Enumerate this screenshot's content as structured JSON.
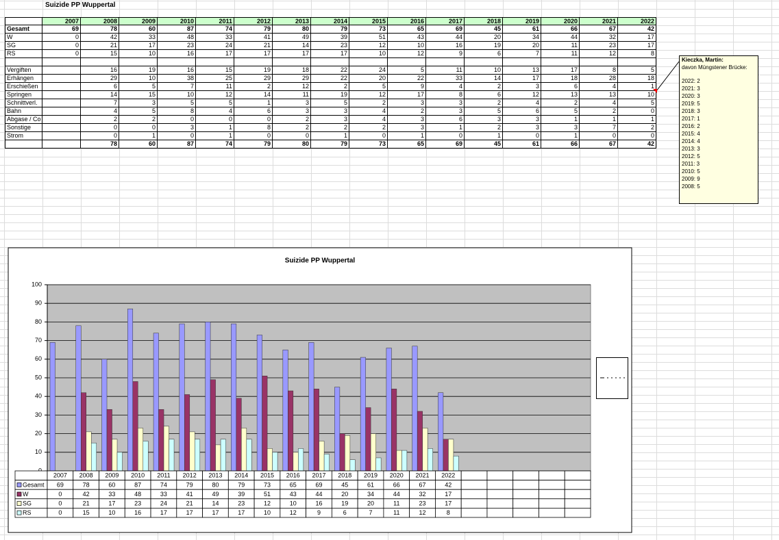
{
  "sheet": {
    "title": "Suizide PP Wuppertal",
    "header": [
      "2007",
      "2008",
      "2009",
      "2010",
      "2011",
      "2012",
      "2013",
      "2014",
      "2015",
      "2016",
      "2017",
      "2018",
      "2019",
      "2020",
      "2021",
      "2022"
    ],
    "rows": [
      {
        "label": "Gesamt",
        "values": [
          69,
          78,
          60,
          87,
          74,
          79,
          80,
          79,
          73,
          65,
          69,
          45,
          61,
          66,
          67,
          42
        ]
      },
      {
        "label": "W",
        "values": [
          0,
          42,
          33,
          48,
          33,
          41,
          49,
          39,
          51,
          43,
          44,
          20,
          34,
          44,
          32,
          17
        ]
      },
      {
        "label": "SG",
        "values": [
          0,
          21,
          17,
          23,
          24,
          21,
          14,
          23,
          12,
          10,
          16,
          19,
          20,
          11,
          23,
          17
        ]
      },
      {
        "label": "RS",
        "values": [
          0,
          15,
          10,
          16,
          17,
          17,
          17,
          17,
          10,
          12,
          9,
          6,
          7,
          11,
          12,
          8
        ]
      }
    ],
    "method_rows": [
      {
        "label": "Vergiften",
        "values": [
          null,
          16,
          19,
          16,
          15,
          19,
          18,
          22,
          24,
          5,
          11,
          10,
          13,
          17,
          8,
          5
        ]
      },
      {
        "label": "Erhängen",
        "values": [
          null,
          29,
          10,
          38,
          25,
          29,
          29,
          22,
          20,
          22,
          33,
          14,
          17,
          18,
          28,
          18
        ]
      },
      {
        "label": "Erschießen",
        "values": [
          null,
          6,
          5,
          7,
          11,
          2,
          12,
          2,
          5,
          9,
          4,
          2,
          3,
          6,
          4,
          1
        ]
      },
      {
        "label": "Springen",
        "values": [
          null,
          14,
          15,
          10,
          12,
          14,
          11,
          19,
          12,
          17,
          8,
          6,
          12,
          13,
          13,
          10
        ]
      },
      {
        "label": "Schnittverl.",
        "values": [
          null,
          7,
          3,
          5,
          5,
          1,
          3,
          5,
          2,
          3,
          3,
          2,
          4,
          2,
          4,
          5
        ]
      },
      {
        "label": "Bahn",
        "values": [
          null,
          4,
          5,
          8,
          4,
          6,
          3,
          3,
          4,
          2,
          3,
          5,
          6,
          5,
          2,
          0
        ]
      },
      {
        "label": "Abgase / Co",
        "values": [
          null,
          2,
          2,
          0,
          0,
          0,
          2,
          3,
          4,
          3,
          6,
          3,
          3,
          1,
          1,
          1
        ]
      },
      {
        "label": "Sonstige",
        "values": [
          null,
          0,
          0,
          3,
          1,
          8,
          2,
          2,
          2,
          3,
          1,
          2,
          3,
          3,
          7,
          2
        ]
      },
      {
        "label": "Strom",
        "values": [
          null,
          0,
          1,
          0,
          1,
          0,
          0,
          1,
          0,
          1,
          0,
          1,
          0,
          1,
          0,
          0
        ]
      }
    ],
    "totals": [
      null,
      78,
      60,
      87,
      74,
      79,
      80,
      79,
      73,
      65,
      69,
      45,
      61,
      66,
      67,
      42
    ]
  },
  "comment": {
    "author": "Kieczka, Martin:",
    "heading": "davon Müngstener Brücke:",
    "lines": [
      "2022: 2",
      "2021: 3",
      "2020: 3",
      "2019: 5",
      "2018: 3",
      "2017: 1",
      "2016: 2",
      "2015: 4",
      "2014: 4",
      "2013: 3",
      "2012: 5",
      "2011: 3",
      "2010: 5",
      "2009: 9",
      "2008: 5"
    ]
  },
  "chart_data": {
    "type": "bar",
    "title": "Suizide PP Wuppertal",
    "categories": [
      "2007",
      "2008",
      "2009",
      "2010",
      "2011",
      "2012",
      "2013",
      "2014",
      "2015",
      "2016",
      "2017",
      "2018",
      "2019",
      "2020",
      "2021",
      "2022",
      null,
      null,
      null,
      null,
      null
    ],
    "series": [
      {
        "name": "Gesamt",
        "color": "#9999ff",
        "values": [
          69,
          78,
          60,
          87,
          74,
          79,
          80,
          79,
          73,
          65,
          69,
          45,
          61,
          66,
          67,
          42,
          null,
          null,
          null,
          null,
          null
        ]
      },
      {
        "name": "W",
        "color": "#993366",
        "values": [
          0,
          42,
          33,
          48,
          33,
          41,
          49,
          39,
          51,
          43,
          44,
          20,
          34,
          44,
          32,
          17,
          null,
          null,
          null,
          null,
          null
        ]
      },
      {
        "name": "SG",
        "color": "#ffffcc",
        "values": [
          0,
          21,
          17,
          23,
          24,
          21,
          14,
          23,
          12,
          10,
          16,
          19,
          20,
          11,
          23,
          17,
          null,
          null,
          null,
          null,
          null
        ]
      },
      {
        "name": "RS",
        "color": "#ccffff",
        "values": [
          0,
          15,
          10,
          16,
          17,
          17,
          17,
          17,
          10,
          12,
          9,
          6,
          7,
          11,
          12,
          8,
          null,
          null,
          null,
          null,
          null
        ]
      }
    ],
    "ylim": [
      0,
      100
    ],
    "yticks": [
      0,
      10,
      20,
      30,
      40,
      50,
      60,
      70,
      80,
      90,
      100
    ],
    "grid": true,
    "plot_background": "#c0c0c0"
  }
}
